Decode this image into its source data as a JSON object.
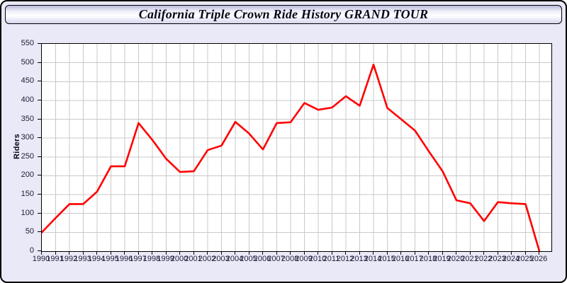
{
  "window": {
    "title": "California Triple Crown Ride History GRAND TOUR"
  },
  "chart_data": {
    "type": "line",
    "title": "California Triple Crown Ride History GRAND TOUR",
    "xlabel": "",
    "ylabel": "Riders",
    "x": [
      1990,
      1991,
      1992,
      1993,
      1994,
      1995,
      1996,
      1997,
      1998,
      1999,
      2000,
      2001,
      2002,
      2003,
      2004,
      2005,
      2006,
      2007,
      2008,
      2009,
      2010,
      2011,
      2012,
      2013,
      2014,
      2015,
      2016,
      2017,
      2018,
      2019,
      2020,
      2021,
      2022,
      2023,
      2024,
      2025,
      2026
    ],
    "values": [
      50,
      88,
      125,
      125,
      158,
      225,
      225,
      340,
      295,
      245,
      210,
      212,
      268,
      280,
      343,
      312,
      270,
      340,
      342,
      393,
      375,
      381,
      411,
      386,
      495,
      380,
      350,
      320,
      265,
      212,
      135,
      127,
      80,
      130,
      127,
      125,
      0
    ],
    "ylim": [
      0,
      550
    ],
    "ytick_step": 50,
    "grid": true,
    "legend_position": "none",
    "series_name": "Riders"
  },
  "colors": {
    "page_background": "#e9e9f7",
    "plot_background": "#ffffff",
    "gridline": "#c9c9c9",
    "axis_border": "#000000",
    "line": "#ff0000",
    "tick_text": "#1c1c38",
    "title_text": "#05051a"
  }
}
